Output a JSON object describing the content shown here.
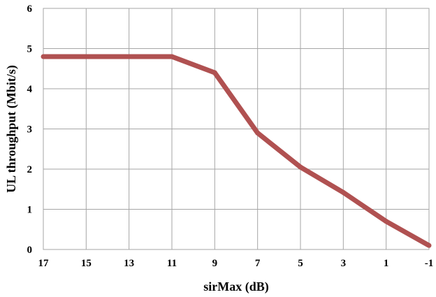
{
  "chart_data": {
    "type": "line",
    "xlabel": "sirMax (dB)",
    "ylabel": "UL throughput (Mbit/s)",
    "x_ticks": [
      "17",
      "15",
      "13",
      "11",
      "9",
      "7",
      "5",
      "3",
      "1",
      "-1"
    ],
    "y_ticks": [
      "0",
      "1",
      "2",
      "3",
      "4",
      "5",
      "6"
    ],
    "xlim": [
      17,
      -1
    ],
    "ylim": [
      0,
      6
    ],
    "grid": true,
    "legend": "none",
    "series": [
      {
        "color": "#b05151",
        "points": [
          {
            "x": 17,
            "y": 4.8
          },
          {
            "x": 15,
            "y": 4.8
          },
          {
            "x": 13,
            "y": 4.8
          },
          {
            "x": 11,
            "y": 4.8
          },
          {
            "x": 9,
            "y": 4.4
          },
          {
            "x": 7,
            "y": 2.9
          },
          {
            "x": 5,
            "y": 2.05
          },
          {
            "x": 3,
            "y": 1.42
          },
          {
            "x": 1,
            "y": 0.7
          },
          {
            "x": -1,
            "y": 0.1
          }
        ]
      }
    ]
  }
}
